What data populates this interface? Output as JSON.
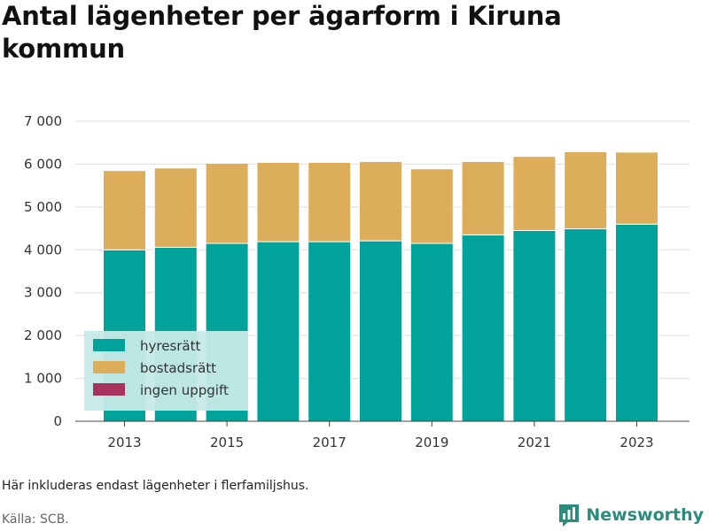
{
  "title": "Antal lägenheter per ägarform i Kiruna kommun",
  "note": "Här inkluderas endast lägenheter i flerfamiljshus.",
  "source": "Källa: SCB.",
  "brand": {
    "name": "Newsworthy",
    "icon": "newsworthy-logo-icon"
  },
  "colors": {
    "hyresratt": "#00a29a",
    "bostadsratt": "#dcad5a",
    "ingen": "#a8345e",
    "legend_bg": "#c5eae8"
  },
  "chart_data": {
    "type": "bar",
    "stacked": true,
    "categories": [
      "2013",
      "2014",
      "2015",
      "2016",
      "2017",
      "2018",
      "2019",
      "2020",
      "2021",
      "2022",
      "2023"
    ],
    "series": [
      {
        "name": "hyresrätt",
        "color": "#00a29a",
        "values": [
          4000,
          4060,
          4150,
          4190,
          4190,
          4210,
          4150,
          4350,
          4450,
          4490,
          4600
        ]
      },
      {
        "name": "bostadsrätt",
        "color": "#dcad5a",
        "values": [
          1850,
          1850,
          1870,
          1850,
          1850,
          1850,
          1740,
          1710,
          1730,
          1800,
          1680
        ]
      },
      {
        "name": "ingen uppgift",
        "color": "#a8345e",
        "values": [
          0,
          0,
          0,
          0,
          0,
          0,
          0,
          0,
          0,
          0,
          0
        ]
      }
    ],
    "xticks": [
      "2013",
      "2015",
      "2017",
      "2019",
      "2021",
      "2023"
    ],
    "yticks": [
      "0",
      "1 000",
      "2 000",
      "3 000",
      "4 000",
      "5 000",
      "6 000",
      "7 000"
    ],
    "ylim": [
      0,
      7000
    ],
    "grid": true,
    "legend_position": "bottom-left"
  }
}
